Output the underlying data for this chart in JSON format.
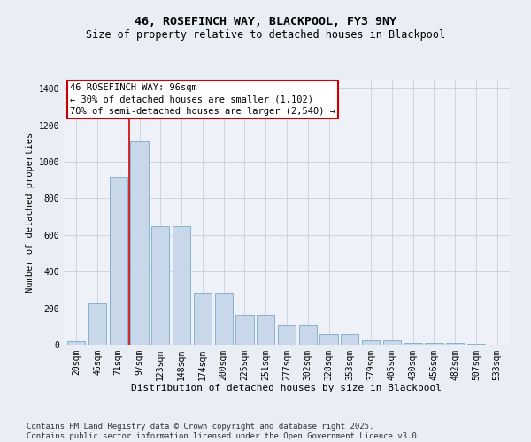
{
  "title": "46, ROSEFINCH WAY, BLACKPOOL, FY3 9NY",
  "subtitle": "Size of property relative to detached houses in Blackpool",
  "xlabel": "Distribution of detached houses by size in Blackpool",
  "ylabel": "Number of detached properties",
  "categories": [
    "20sqm",
    "46sqm",
    "71sqm",
    "97sqm",
    "123sqm",
    "148sqm",
    "174sqm",
    "200sqm",
    "225sqm",
    "251sqm",
    "277sqm",
    "302sqm",
    "328sqm",
    "353sqm",
    "379sqm",
    "405sqm",
    "430sqm",
    "456sqm",
    "482sqm",
    "507sqm",
    "533sqm"
  ],
  "values": [
    20,
    225,
    920,
    1110,
    648,
    648,
    280,
    280,
    163,
    163,
    105,
    105,
    60,
    60,
    25,
    25,
    12,
    12,
    10,
    5,
    2
  ],
  "bar_color": "#c8d8ea",
  "bar_edge_color": "#7aaac8",
  "vline_color": "#cc0000",
  "annotation_text": "46 ROSEFINCH WAY: 96sqm\n← 30% of detached houses are smaller (1,102)\n70% of semi-detached houses are larger (2,540) →",
  "annotation_box_color": "#cc0000",
  "ylim": [
    0,
    1450
  ],
  "yticks": [
    0,
    200,
    400,
    600,
    800,
    1000,
    1200,
    1400
  ],
  "bg_color": "#e8eef4",
  "plot_bg_color": "#eef2f8",
  "grid_color": "#c8d0dc",
  "footer": "Contains HM Land Registry data © Crown copyright and database right 2025.\nContains public sector information licensed under the Open Government Licence v3.0.",
  "title_fontsize": 9.5,
  "subtitle_fontsize": 8.5,
  "xlabel_fontsize": 8,
  "ylabel_fontsize": 7.5,
  "tick_fontsize": 7,
  "annotation_fontsize": 7.5,
  "footer_fontsize": 6.5
}
